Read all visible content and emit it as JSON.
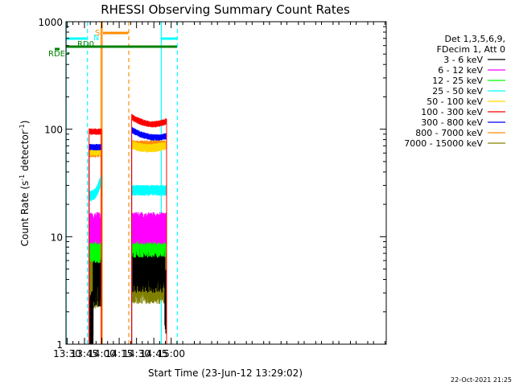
{
  "chart_data": {
    "type": "line",
    "title": "RHESSI Observing Summary Count Rates",
    "xlabel": "Start Time (23-Jun-12 13:29:02)",
    "ylabel_main": "Count Rate (s",
    "ylabel_sup1": "-1",
    "ylabel_mid": " detector",
    "ylabel_sup2": "-1",
    "ylabel_end": ")",
    "yscale": "log",
    "xlim_min": [
      809,
      1086
    ],
    "ylim": [
      1,
      1000
    ],
    "x_ticks": [
      {
        "min": 810,
        "label": "13:30"
      },
      {
        "min": 825,
        "label": "13:45"
      },
      {
        "min": 840,
        "label": "14:00"
      },
      {
        "min": 855,
        "label": "14:15"
      },
      {
        "min": 870,
        "label": "14:30"
      },
      {
        "min": 885,
        "label": "14:45"
      },
      {
        "min": 900,
        "label": "15:00"
      }
    ],
    "y_ticks": [
      {
        "value": 1,
        "label": "1"
      },
      {
        "value": 10,
        "label": "10"
      },
      {
        "value": 100,
        "label": "100"
      },
      {
        "value": 1000,
        "label": "1000"
      }
    ],
    "legend_header": [
      "Det 1,3,5,6,9,",
      "FDecim 1, Att 0"
    ],
    "series": [
      {
        "name": "3 - 6 keV",
        "color": "#000000",
        "segments": [
          {
            "start": 829.0,
            "end": 839.6,
            "level": 5.0,
            "noise": 0.35,
            "dip_before": 832.5,
            "dip_level": 1.4
          },
          {
            "start": 865.8,
            "end": 896.0,
            "level": 6.0,
            "noise": 0.3
          }
        ]
      },
      {
        "name": "6 - 12 keV",
        "color": "#ff00ff",
        "segments": [
          {
            "start": 829.0,
            "end": 839.6,
            "level": 12.0,
            "noise": 0.15
          },
          {
            "start": 865.8,
            "end": 896.0,
            "level": 12.0,
            "noise": 0.15
          }
        ]
      },
      {
        "name": "12 - 25 keV",
        "color": "#00ff00",
        "segments": [
          {
            "start": 829.0,
            "end": 839.6,
            "level": 8.0,
            "noise": 0.15
          },
          {
            "start": 865.8,
            "end": 896.0,
            "level": 9.0,
            "noise": 0.15
          }
        ]
      },
      {
        "name": "25 - 50 keV",
        "color": "#00ffff",
        "segments": [
          {
            "start": 829.0,
            "end": 839.6,
            "level": 24.0,
            "noise": 0.05,
            "rise_to": 35.0
          },
          {
            "start": 865.8,
            "end": 896.0,
            "level": 27.0,
            "noise": 0.05
          }
        ]
      },
      {
        "name": "50 - 100 keV",
        "color": "#ffd700",
        "segments": [
          {
            "start": 829.0,
            "end": 839.6,
            "level": 62.0,
            "noise": 0.04
          },
          {
            "start": 865.8,
            "end": 896.0,
            "level": 65.0,
            "noise": 0.04
          }
        ]
      },
      {
        "name": "100 - 300 keV",
        "color": "#ff0000",
        "segments": [
          {
            "start": 829.0,
            "end": 839.6,
            "level": 95.0,
            "noise": 0.03
          },
          {
            "start": 865.8,
            "end": 896.0,
            "level": 110.0,
            "noise": 0.03
          }
        ]
      },
      {
        "name": "300 - 800 keV",
        "color": "#0000ff",
        "segments": [
          {
            "start": 829.0,
            "end": 839.6,
            "level": 68.0,
            "noise": 0.03
          },
          {
            "start": 865.8,
            "end": 896.0,
            "level": 82.0,
            "noise": 0.03
          }
        ]
      },
      {
        "name": "800 - 7000 keV",
        "color": "#ff8c00",
        "segments": [
          {
            "start": 829.0,
            "end": 839.6,
            "level": 60.0,
            "noise": 0.04
          },
          {
            "start": 865.8,
            "end": 896.0,
            "level": 72.0,
            "noise": 0.04
          }
        ]
      },
      {
        "name": "7000 - 15000 keV",
        "color": "#808000",
        "segments": [
          {
            "start": 829.0,
            "end": 839.6,
            "level": 3.8,
            "noise": 0.25
          },
          {
            "start": 865.8,
            "end": 896.0,
            "level": 4.2,
            "noise": 0.25
          }
        ]
      }
    ],
    "status_flags": [
      {
        "label": "N",
        "color": "#00ffff",
        "segments": [
          [
            809,
            827
          ],
          [
            891,
            905
          ]
        ]
      },
      {
        "label": "S",
        "color": "#ff8c00",
        "segments": [
          [
            841,
            863
          ]
        ]
      },
      {
        "label": "RD0",
        "color": "#008000",
        "segments": [
          [
            809,
            905
          ]
        ]
      },
      {
        "label": "RDE",
        "color": "#008000",
        "segments": [
          [
            810,
            812
          ]
        ]
      }
    ],
    "vlines": [
      {
        "min": 809.2,
        "color": "#00ffff",
        "style": "solid"
      },
      {
        "min": 827.6,
        "color": "#00ffff",
        "style": "dashed"
      },
      {
        "min": 839.3,
        "color": "#ff8c00",
        "style": "solid"
      },
      {
        "min": 840.3,
        "color": "#ff8c00",
        "style": "solid"
      },
      {
        "min": 863.3,
        "color": "#ff8c00",
        "style": "dashed"
      },
      {
        "min": 891.4,
        "color": "#00ffff",
        "style": "solid"
      },
      {
        "min": 905.3,
        "color": "#00ffff",
        "style": "dashed"
      }
    ],
    "footer": "22-Oct-2021 21:25"
  }
}
